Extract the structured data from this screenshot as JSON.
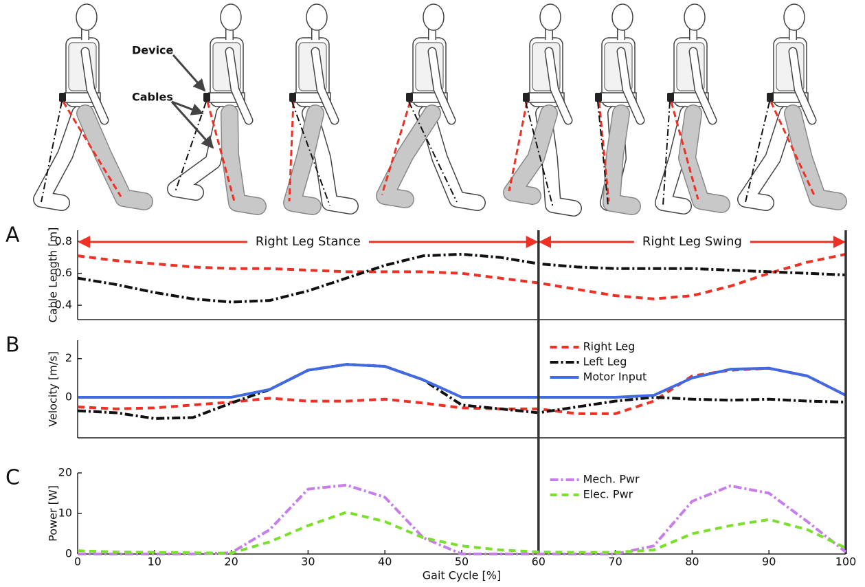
{
  "illustration": {
    "labels": [
      "Device",
      "Cables"
    ]
  },
  "chart_data": [
    {
      "type": "line",
      "panel": "A",
      "ylabel": "Cable Length [m]",
      "x": [
        0,
        5,
        10,
        15,
        20,
        25,
        30,
        35,
        40,
        45,
        50,
        55,
        60,
        65,
        70,
        75,
        80,
        85,
        90,
        95,
        100
      ],
      "xlim": [
        0,
        100
      ],
      "ylim": [
        0.31,
        0.87
      ],
      "yticks": [
        0.4,
        0.6,
        0.8
      ],
      "series": [
        {
          "color": "#ee3124",
          "dash": "dashed",
          "values": [
            0.71,
            0.68,
            0.66,
            0.64,
            0.63,
            0.63,
            0.62,
            0.61,
            0.61,
            0.61,
            0.6,
            0.57,
            0.54,
            0.5,
            0.46,
            0.44,
            0.46,
            0.52,
            0.6,
            0.67,
            0.72
          ]
        },
        {
          "color": "#111111",
          "dash": "dashdot",
          "values": [
            0.57,
            0.53,
            0.48,
            0.44,
            0.42,
            0.43,
            0.49,
            0.57,
            0.65,
            0.71,
            0.72,
            0.7,
            0.66,
            0.64,
            0.63,
            0.63,
            0.63,
            0.62,
            0.61,
            0.6,
            0.59
          ]
        }
      ],
      "annotations": [
        {
          "text": "Right Leg Stance",
          "span": [
            0,
            60
          ]
        },
        {
          "text": "Right Leg Swing",
          "span": [
            60,
            100
          ]
        }
      ]
    },
    {
      "type": "line",
      "panel": "B",
      "ylabel": "Velocity [m/s]",
      "x": [
        0,
        5,
        10,
        15,
        20,
        25,
        30,
        35,
        40,
        45,
        50,
        55,
        60,
        65,
        70,
        75,
        80,
        85,
        90,
        95,
        100
      ],
      "xlim": [
        0,
        100
      ],
      "ylim": [
        -2.1,
        2.95
      ],
      "yticks": [
        0,
        2
      ],
      "legend": "upper-right",
      "series": [
        {
          "name": "Right Leg",
          "color": "#ee3124",
          "dash": "dashed",
          "values": [
            -0.5,
            -0.6,
            -0.55,
            -0.4,
            -0.25,
            -0.05,
            -0.2,
            -0.2,
            -0.1,
            -0.3,
            -0.55,
            -0.6,
            -0.6,
            -0.85,
            -0.85,
            -0.2,
            1.1,
            1.4,
            1.5,
            1.1,
            0.1
          ]
        },
        {
          "name": "Left Leg",
          "color": "#111111",
          "dash": "dashdot",
          "values": [
            -0.7,
            -0.8,
            -1.1,
            -1.05,
            -0.3,
            0.4,
            1.4,
            1.7,
            1.6,
            0.9,
            -0.4,
            -0.6,
            -0.8,
            -0.5,
            -0.2,
            0,
            -0.1,
            -0.15,
            -0.1,
            -0.2,
            -0.25
          ]
        },
        {
          "name": "Motor Input",
          "color": "#4169e1",
          "dash": "solid",
          "values": [
            0,
            0,
            0,
            0,
            0,
            0.4,
            1.4,
            1.7,
            1.6,
            0.9,
            0,
            0,
            0,
            0,
            0,
            0.1,
            1.0,
            1.45,
            1.5,
            1.1,
            0.1
          ]
        }
      ]
    },
    {
      "type": "line",
      "panel": "C",
      "ylabel": "Power [W]",
      "xlabel": "Gait Cycle [%]",
      "x": [
        0,
        5,
        10,
        15,
        20,
        25,
        30,
        35,
        40,
        45,
        50,
        55,
        60,
        65,
        70,
        75,
        80,
        85,
        90,
        95,
        100
      ],
      "xlim": [
        0,
        100
      ],
      "ylim": [
        0,
        20
      ],
      "yticks": [
        0,
        10,
        20
      ],
      "xticks": [
        0,
        10,
        20,
        30,
        40,
        50,
        60,
        70,
        80,
        90,
        100
      ],
      "legend": "upper-right",
      "vlines": [
        60,
        100
      ],
      "series": [
        {
          "name": "Mech. Pwr",
          "color": "#c77dea",
          "dash": "dashdot",
          "values": [
            0,
            0,
            0,
            0,
            0.3,
            6,
            16,
            17,
            14,
            4,
            0,
            0,
            0,
            0,
            0,
            2,
            13,
            16.8,
            15,
            8,
            0.5
          ]
        },
        {
          "name": "Elec. Pwr",
          "color": "#7be02c",
          "dash": "dashed",
          "values": [
            0.8,
            0.5,
            0.4,
            0.3,
            0.2,
            3,
            7,
            10.3,
            8,
            4,
            2,
            1,
            0.5,
            0.4,
            0.4,
            1,
            5,
            7,
            8.5,
            6,
            1.5
          ]
        }
      ]
    }
  ]
}
